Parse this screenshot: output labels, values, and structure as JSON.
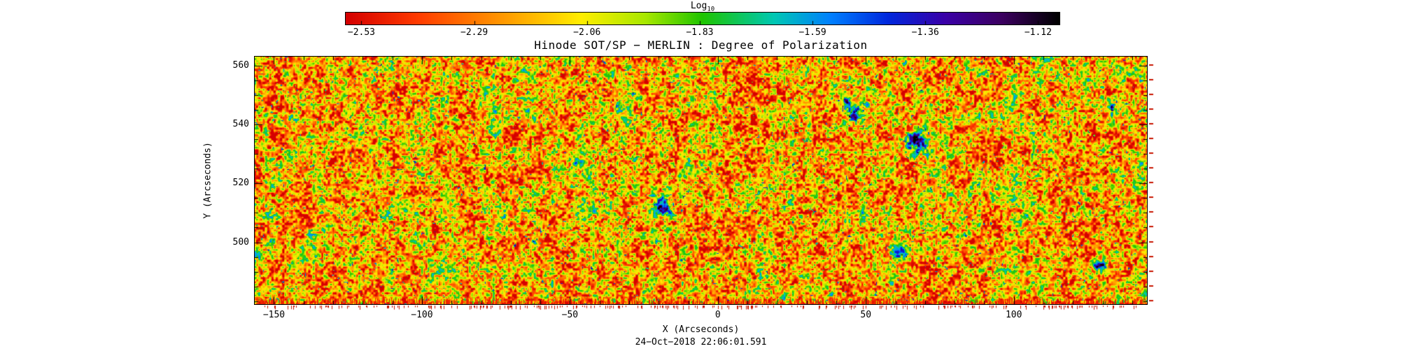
{
  "colorbar": {
    "label_main": "Log",
    "label_sub": "10",
    "tick_labels": [
      "−2.53",
      "−2.29",
      "−2.06",
      "−1.83",
      "−1.59",
      "−1.36",
      "−1.12"
    ]
  },
  "chart_data": {
    "type": "heatmap",
    "title": "Hinode SOT/SP − MERLIN : Degree of Polarization",
    "xlabel": "X (Arcseconds)",
    "ylabel": "Y (Arcseconds)",
    "timestamp": "24−Oct−2018 22:06:01.591",
    "xlim": [
      -156.5,
      145
    ],
    "ylim": [
      479,
      563
    ],
    "x_ticks": [
      -150,
      -100,
      -50,
      0,
      50,
      100
    ],
    "y_ticks": [
      500,
      520,
      540,
      560
    ],
    "x_minor_step": 10,
    "y_minor_step": 5,
    "grid": false,
    "legend": "none",
    "colorbar": {
      "label": "Log10",
      "orientation": "horizontal",
      "tick_values": [
        -2.53,
        -2.29,
        -2.06,
        -1.83,
        -1.59,
        -1.36,
        -1.12
      ],
      "value_range": [
        -2.53,
        -1.12
      ]
    },
    "colormap_stops": [
      [
        0.0,
        "#d40000"
      ],
      [
        0.1,
        "#ff3b00"
      ],
      [
        0.22,
        "#ff9900"
      ],
      [
        0.33,
        "#ffee00"
      ],
      [
        0.42,
        "#a8e800"
      ],
      [
        0.5,
        "#1fc400"
      ],
      [
        0.6,
        "#00c8b4"
      ],
      [
        0.68,
        "#0080ff"
      ],
      [
        0.76,
        "#0028dd"
      ],
      [
        0.84,
        "#3a00a8"
      ],
      [
        0.92,
        "#3c0060"
      ],
      [
        1.0,
        "#000000"
      ]
    ],
    "field": {
      "description": "Granular log10 degree-of-polarization map: predominantly −2.5 to −2.0 (red/orange/yellow mottling) with scattered green speckles and sparse high-polarization blue/violet patches; saturated red streaks along the bottom edge and red minor-tick marks outside the right edge",
      "value_units": "log10 degree of polarization",
      "noise": {
        "seed": 7,
        "base_offset": 0.27,
        "gain": 1.05
      },
      "blobs": [
        {
          "x": 46,
          "y": 544,
          "r": 2.0,
          "s": 0.62
        },
        {
          "x": 43,
          "y": 548,
          "r": 1.4,
          "s": 0.5
        },
        {
          "x": 67,
          "y": 534,
          "r": 2.4,
          "s": 0.65
        },
        {
          "x": -19,
          "y": 512,
          "r": 1.9,
          "s": 0.6
        },
        {
          "x": 62,
          "y": 497,
          "r": 2.1,
          "s": 0.62
        },
        {
          "x": -48,
          "y": 527,
          "r": 1.3,
          "s": 0.45
        },
        {
          "x": 129,
          "y": 492,
          "r": 1.5,
          "s": 0.5
        },
        {
          "x": 133,
          "y": 546,
          "r": 1.4,
          "s": 0.45
        },
        {
          "x": -151,
          "y": 500,
          "r": 1.2,
          "s": 0.4
        },
        {
          "x": -62,
          "y": 500,
          "r": 1.2,
          "s": 0.4
        },
        {
          "x": -27,
          "y": 549,
          "r": 1.1,
          "s": 0.4
        },
        {
          "x": 104,
          "y": 509,
          "r": 1.2,
          "s": 0.38
        }
      ]
    }
  }
}
